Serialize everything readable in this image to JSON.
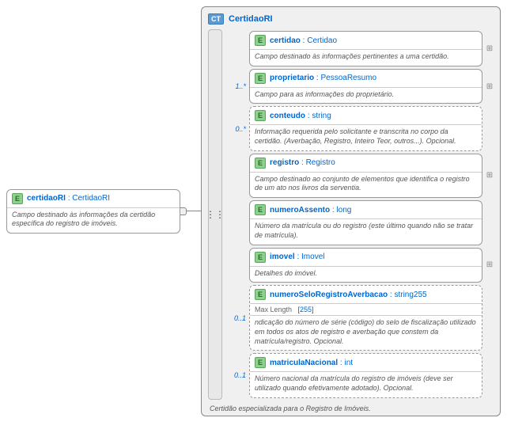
{
  "root": {
    "name": "certidaoRI",
    "type": "CertidaoRI",
    "desc": "Campo destinado às informações da certidão específica do registro de imóveis."
  },
  "complex": {
    "badge": "CT",
    "name": "CertidaoRI",
    "footer": "Certidão especializada para o Registro de Imóveis."
  },
  "items": [
    {
      "occ": "",
      "name": "certidao",
      "type": "Certidao",
      "desc": "Campo destinado às informações pertinentes a uma certidão.",
      "expand": true
    },
    {
      "occ": "1..*",
      "name": "proprietario",
      "type": "PessoaResumo",
      "desc": "Campo para as informações do proprietário.",
      "expand": true
    },
    {
      "occ": "0..*",
      "name": "conteudo",
      "type": "string",
      "desc": "Informação requerida pelo solicitante e transcrita no corpo da certidão. (Averbação, Registro, Inteiro Teor, outros...). Opcional.",
      "optional": true
    },
    {
      "occ": "",
      "name": "registro",
      "type": "Registro",
      "desc": "Campo destinado ao conjunto de elementos que identifica o registro de um ato nos livros da serventia.",
      "expand": true
    },
    {
      "occ": "",
      "name": "numeroAssento",
      "type": "long",
      "desc": "Número da matrícula ou do registro (este último quando não se tratar de matrícula)."
    },
    {
      "occ": "",
      "name": "imovel",
      "type": "Imovel",
      "desc": "Detalhes do imóvel.",
      "expand": true
    },
    {
      "occ": "0..1",
      "name": "numeroSeloRegistroAverbacao",
      "type": "string255",
      "constraintLabel": "Max Length",
      "constraintVal": "[255]",
      "desc": "ndicação do número de série (código) do selo de fiscalização utilizado em todos os atos de registro e averbação que constem da matrícula/registro. Opcional.",
      "optional": true
    },
    {
      "occ": "0..1",
      "name": "matriculaNacional",
      "type": "int",
      "desc": "Número nacional da matrícula do registro de imóveis (deve ser utilizado quando efetivamente adotado). Opcional.",
      "optional": true
    }
  ],
  "badges": {
    "element": "E"
  }
}
